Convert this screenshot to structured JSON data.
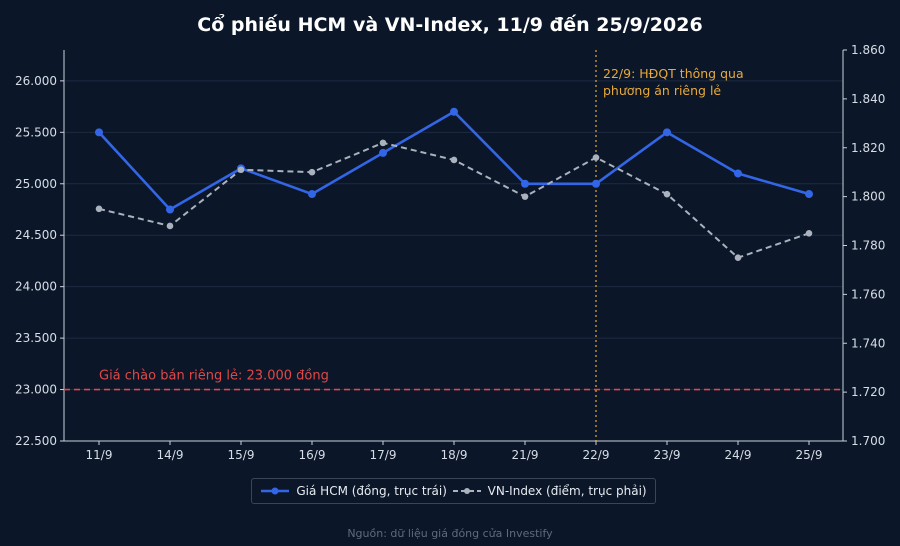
{
  "chart_data": {
    "type": "line",
    "title": "Cổ phiếu HCM và VN-Index, 11/9 đến 25/9/2026",
    "categories": [
      "11/9",
      "14/9",
      "15/9",
      "16/9",
      "17/9",
      "18/9",
      "21/9",
      "22/9",
      "23/9",
      "24/9",
      "25/9"
    ],
    "series": [
      {
        "name": "Giá HCM (đồng, trục trái)",
        "axis": "left",
        "color": "#3366e6",
        "style": "solid",
        "values": [
          25500,
          24750,
          25150,
          24900,
          25300,
          25700,
          25000,
          25000,
          25500,
          25100,
          24900
        ]
      },
      {
        "name": "VN-Index (điểm, trục phải)",
        "axis": "right",
        "color": "#a9b2bd",
        "style": "dashed",
        "values": [
          1795,
          1788,
          1811,
          1810,
          1822,
          1815,
          1800,
          1816,
          1801,
          1775,
          1785
        ]
      }
    ],
    "y_left": {
      "ylim": [
        22500,
        26300
      ],
      "ticks": [
        22500,
        23000,
        23500,
        24000,
        24500,
        25000,
        25500,
        26000
      ],
      "tick_labels": [
        "22.500",
        "23.000",
        "23.500",
        "24.000",
        "24.500",
        "25.000",
        "25.500",
        "26.000"
      ]
    },
    "y_right": {
      "ylim": [
        1700,
        1860
      ],
      "ticks": [
        1700,
        1720,
        1740,
        1760,
        1780,
        1800,
        1820,
        1840,
        1860
      ],
      "tick_labels": [
        "1.700",
        "1.720",
        "1.740",
        "1.760",
        "1.780",
        "1.800",
        "1.820",
        "1.840",
        "1.860"
      ]
    },
    "reference_line": {
      "axis": "left",
      "value": 23000,
      "label": "Giá chào bán riêng lẻ: 23.000 đồng",
      "color": "#e04848"
    },
    "event_line": {
      "category": "22/9",
      "label_lines": [
        "22/9: HĐQT thông qua",
        "phương án riêng lẻ"
      ],
      "color": "#e8a93a"
    },
    "grid": true,
    "legend_position": "bottom-center",
    "source": "Nguồn: dữ liệu giá đóng cửa Investify"
  }
}
